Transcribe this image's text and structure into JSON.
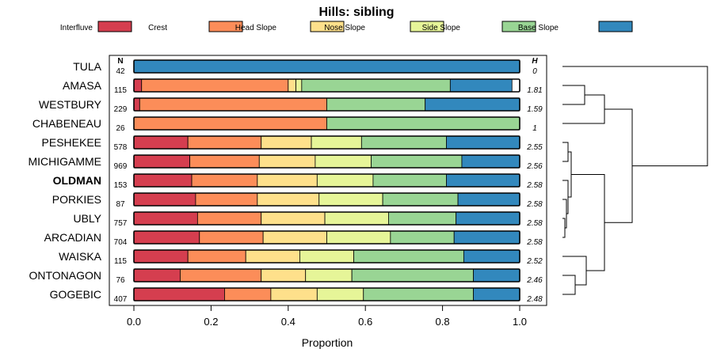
{
  "chart_data": {
    "type": "bar",
    "orientation": "horizontal",
    "stacked": true,
    "title": "Hills: sibling",
    "xlabel": "Proportion",
    "ylabel": "",
    "xlim": [
      0,
      1
    ],
    "xticks": [
      0,
      0.2,
      0.4,
      0.6,
      0.8,
      1
    ],
    "xtick_labels": [
      "0.0",
      "0.2",
      "0.4",
      "0.6",
      "0.8",
      "1.0"
    ],
    "n_header": "N",
    "h_header": "H",
    "legend_position": "top",
    "legend": [
      {
        "name": "Interfluve",
        "color": "#D53E4F"
      },
      {
        "name": "Crest",
        "color": "#FC8D59"
      },
      {
        "name": "Head Slope",
        "color": "#FEE08B"
      },
      {
        "name": "Nose Slope",
        "color": "#E6F598"
      },
      {
        "name": "Side Slope",
        "color": "#99D594"
      },
      {
        "name": "Base Slope",
        "color": "#3288BD"
      }
    ],
    "highlighted": "OLDMAN",
    "categories": [
      "TULA",
      "AMASA",
      "WESTBURY",
      "CHABENEAU",
      "PESHEKEE",
      "MICHIGAMME",
      "OLDMAN",
      "PORKIES",
      "UBLY",
      "ARCADIAN",
      "WAISKA",
      "ONTONAGON",
      "GOGEBIC"
    ],
    "n": [
      "42",
      "115",
      "229",
      "26",
      "578",
      "969",
      "153",
      "87",
      "757",
      "704",
      "115",
      "76",
      "407"
    ],
    "h": [
      "0",
      "1.81",
      "1.59",
      "1",
      "2.55",
      "2.56",
      "2.58",
      "2.58",
      "2.58",
      "2.58",
      "2.52",
      "2.46",
      "2.48"
    ],
    "series": [
      {
        "name": "Interfluve",
        "values": [
          0,
          0.02,
          0.015,
          0,
          0.14,
          0.145,
          0.15,
          0.16,
          0.165,
          0.17,
          0.14,
          0.12,
          0.235
        ]
      },
      {
        "name": "Crest",
        "values": [
          0,
          0.38,
          0.485,
          0.5,
          0.19,
          0.18,
          0.17,
          0.16,
          0.165,
          0.165,
          0.15,
          0.21,
          0.12
        ]
      },
      {
        "name": "Head Slope",
        "values": [
          0,
          0.02,
          0,
          0,
          0.13,
          0.145,
          0.155,
          0.16,
          0.165,
          0.165,
          0.14,
          0.115,
          0.12
        ]
      },
      {
        "name": "Nose Slope",
        "values": [
          0,
          0.015,
          0,
          0,
          0.13,
          0.145,
          0.145,
          0.165,
          0.165,
          0.165,
          0.14,
          0.12,
          0.12
        ]
      },
      {
        "name": "Side Slope",
        "values": [
          0,
          0.385,
          0.255,
          0.5,
          0.22,
          0.235,
          0.19,
          0.195,
          0.175,
          0.165,
          0.285,
          0.315,
          0.285
        ]
      },
      {
        "name": "Base Slope",
        "values": [
          1,
          0.16,
          0.245,
          0,
          0.19,
          0.15,
          0.19,
          0.16,
          0.165,
          0.17,
          0.145,
          0.12,
          0.12
        ]
      }
    ]
  }
}
